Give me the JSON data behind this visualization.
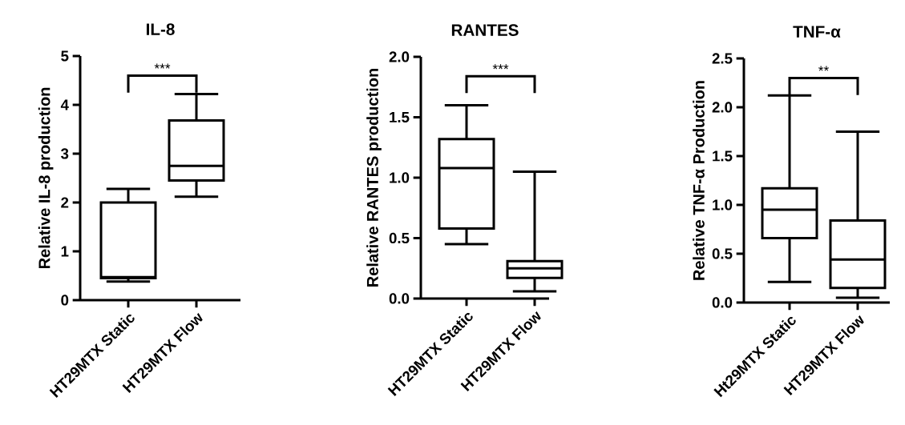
{
  "chart_data": [
    {
      "type": "box",
      "title": "IL-8",
      "ylabel": "Relative IL-8 production",
      "categories": [
        "HT29MTX Static",
        "HT29MTX Flow"
      ],
      "color": "#000000",
      "boxes": [
        {
          "low": 0.38,
          "q1": 0.45,
          "median": 0.47,
          "q3": 2.0,
          "high": 2.28
        },
        {
          "low": 2.12,
          "q1": 2.45,
          "median": 2.75,
          "q3": 3.68,
          "high": 4.22
        }
      ],
      "ylim": [
        0,
        5
      ],
      "yticks": [
        0,
        1,
        2,
        3,
        4,
        5
      ],
      "annotations": [
        "***"
      ]
    },
    {
      "type": "box",
      "title": "RANTES",
      "ylabel": "Relative RANTES production",
      "categories": [
        "HT29MTX Static",
        "HT29MTX Flow"
      ],
      "color": "#000000",
      "boxes": [
        {
          "low": 0.45,
          "q1": 0.58,
          "median": 1.08,
          "q3": 1.32,
          "high": 1.6
        },
        {
          "low": 0.06,
          "q1": 0.17,
          "median": 0.25,
          "q3": 0.31,
          "high": 1.05
        }
      ],
      "ylim": [
        0,
        2
      ],
      "yticks": [
        {
          "value": 0,
          "label": "0.0"
        },
        0.5,
        {
          "value": 1,
          "label": "1.0"
        },
        1.5,
        {
          "value": 2,
          "label": "2.0"
        }
      ],
      "annotations": [
        "***"
      ]
    },
    {
      "type": "box",
      "title": "TNF-α",
      "ylabel": "Relative TNF-α Production",
      "categories": [
        "Ht29MTX Static",
        "HT29MTX Flow"
      ],
      "color": "#000000",
      "boxes": [
        {
          "low": 0.21,
          "q1": 0.66,
          "median": 0.95,
          "q3": 1.17,
          "high": 2.12
        },
        {
          "low": 0.05,
          "q1": 0.15,
          "median": 0.44,
          "q3": 0.84,
          "high": 1.75
        }
      ],
      "ylim": [
        0,
        2.5
      ],
      "yticks": [
        {
          "value": 0,
          "label": "0.0"
        },
        0.5,
        {
          "value": 1,
          "label": "1.0"
        },
        1.5,
        {
          "value": 2,
          "label": "2.0"
        },
        2.5
      ],
      "annotations": [
        "**"
      ]
    }
  ]
}
